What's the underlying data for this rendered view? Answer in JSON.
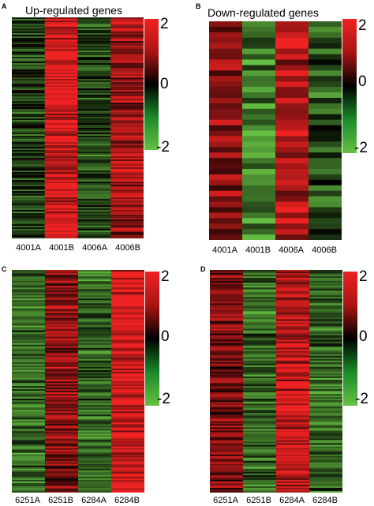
{
  "chart_data": [
    {
      "panel": "A",
      "type": "heatmap",
      "title": "Up-regulated genes",
      "columns": [
        "4001A",
        "4001B",
        "4006A",
        "4006B"
      ],
      "column_means": [
        -0.6,
        1.8,
        -0.7,
        1.3
      ],
      "rows": 140,
      "colorbar": {
        "ticks": [
          "2",
          "0",
          "-2"
        ],
        "range": [
          -2,
          2
        ]
      }
    },
    {
      "panel": "B",
      "type": "heatmap",
      "title": "Down-regulated genes",
      "columns": [
        "4001A",
        "4001B",
        "4006A",
        "4006B"
      ],
      "column_means": [
        1.2,
        -1.3,
        1.5,
        -0.8
      ],
      "rows": 40,
      "colorbar": {
        "ticks": [
          "2",
          "0",
          "-2"
        ],
        "range": [
          -2,
          2
        ]
      }
    },
    {
      "panel": "C",
      "type": "heatmap",
      "title": "",
      "columns": [
        "6251A",
        "6251B",
        "6284A",
        "6284B"
      ],
      "column_means": [
        -1.0,
        1.1,
        -1.0,
        1.8
      ],
      "rows": 140,
      "colorbar": {
        "ticks": [
          "2",
          "0",
          "-2"
        ],
        "range": [
          -2,
          2
        ]
      }
    },
    {
      "panel": "D",
      "type": "heatmap",
      "title": "",
      "columns": [
        "6251A",
        "6251B",
        "6284A",
        "6284B"
      ],
      "column_means": [
        1.0,
        -1.0,
        1.6,
        -1.0
      ],
      "rows": 140,
      "colorbar": {
        "ticks": [
          "2",
          "0",
          "-2"
        ],
        "range": [
          -2,
          2
        ]
      }
    }
  ],
  "colors": {
    "high": "#ee2222",
    "mid": "#000000",
    "low": "#66c043"
  }
}
